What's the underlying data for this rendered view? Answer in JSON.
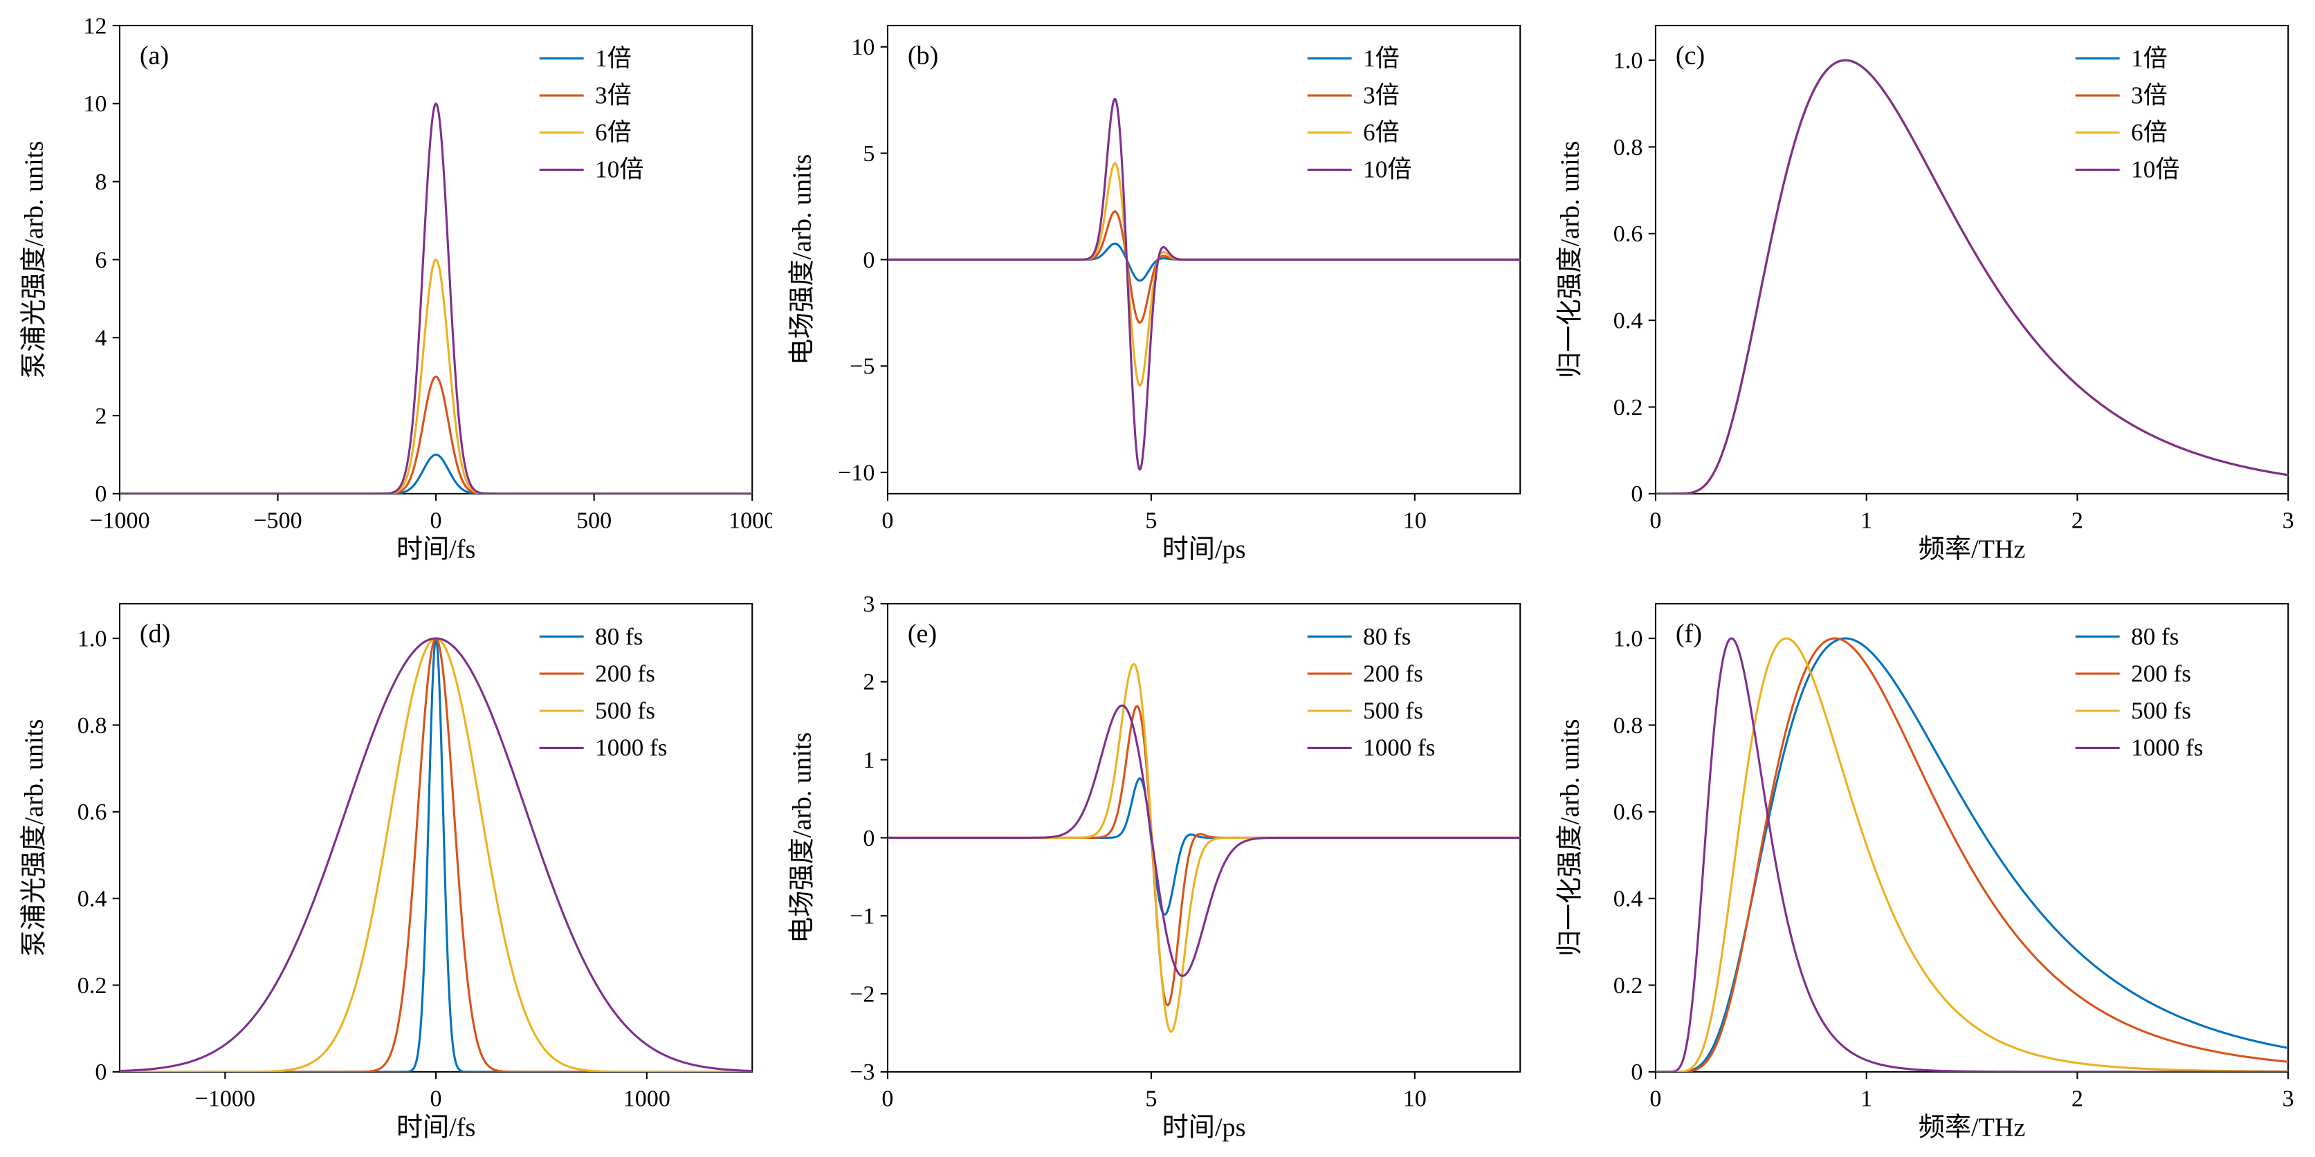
{
  "figure": {
    "background": "#ffffff",
    "panels_order": [
      "a",
      "b",
      "c",
      "d",
      "e",
      "f"
    ]
  },
  "palette": {
    "blue": "#0072BD",
    "red_orange": "#D95319",
    "yellow": "#EDB120",
    "purple": "#7E2F8E"
  },
  "chart_data": [
    {
      "id": "a",
      "type": "line",
      "panel_label": "(a)",
      "xlabel": "时间/fs",
      "ylabel": "泵浦光强度/arb. units",
      "xlim": [
        -1000,
        1000
      ],
      "ylim": [
        0,
        12
      ],
      "xticks": [
        -1000,
        -500,
        0,
        500,
        1000
      ],
      "xtick_labels": [
        "−1000",
        "−500",
        "0",
        "500",
        "1000"
      ],
      "yticks": [
        0,
        2,
        4,
        6,
        8,
        10,
        12
      ],
      "ytick_labels": [
        "0",
        "2",
        "4",
        "6",
        "8",
        "10",
        "12"
      ],
      "grid": false,
      "legend_position": "top-right",
      "series": [
        {
          "name": "1倍",
          "color": "#0072BD",
          "model": "gaussian_sum",
          "components": [
            {
              "amp": 1,
              "center": 0,
              "sigma": 40
            }
          ]
        },
        {
          "name": "3倍",
          "color": "#D95319",
          "model": "gaussian_sum",
          "components": [
            {
              "amp": 3,
              "center": 0,
              "sigma": 40
            }
          ]
        },
        {
          "name": "6倍",
          "color": "#EDB120",
          "model": "gaussian_sum",
          "components": [
            {
              "amp": 6,
              "center": 0,
              "sigma": 40
            }
          ]
        },
        {
          "name": "10倍",
          "color": "#7E2F8E",
          "model": "gaussian_sum",
          "components": [
            {
              "amp": 10,
              "center": 0,
              "sigma": 40
            }
          ]
        }
      ]
    },
    {
      "id": "b",
      "type": "line",
      "panel_label": "(b)",
      "xlabel": "时间/ps",
      "ylabel": "电场强度/arb. units",
      "xlim": [
        0,
        12
      ],
      "ylim": [
        -11,
        11
      ],
      "xticks": [
        0,
        5,
        10
      ],
      "xtick_labels": [
        "0",
        "5",
        "10"
      ],
      "yticks": [
        -10,
        -5,
        0,
        5,
        10
      ],
      "ytick_labels": [
        "−10",
        "−5",
        "0",
        "5",
        "10"
      ],
      "grid": false,
      "legend_position": "top-right",
      "series": [
        {
          "name": "1倍",
          "color": "#0072BD",
          "model": "gaussian_sum",
          "components": [
            {
              "amp": 0.77,
              "center": 4.32,
              "sigma": 0.16
            },
            {
              "amp": -1.0,
              "center": 4.78,
              "sigma": 0.16
            },
            {
              "amp": 0.09,
              "center": 5.16,
              "sigma": 0.13
            }
          ]
        },
        {
          "name": "3倍",
          "color": "#D95319",
          "model": "gaussian_sum",
          "components": [
            {
              "amp": 2.31,
              "center": 4.32,
              "sigma": 0.16
            },
            {
              "amp": -3.0,
              "center": 4.78,
              "sigma": 0.16
            },
            {
              "amp": 0.27,
              "center": 5.16,
              "sigma": 0.13
            }
          ]
        },
        {
          "name": "6倍",
          "color": "#EDB120",
          "model": "gaussian_sum",
          "components": [
            {
              "amp": 4.62,
              "center": 4.32,
              "sigma": 0.16
            },
            {
              "amp": -6.0,
              "center": 4.78,
              "sigma": 0.16
            },
            {
              "amp": 0.54,
              "center": 5.16,
              "sigma": 0.13
            }
          ]
        },
        {
          "name": "10倍",
          "color": "#7E2F8E",
          "model": "gaussian_sum",
          "components": [
            {
              "amp": 7.7,
              "center": 4.32,
              "sigma": 0.16
            },
            {
              "amp": -10.0,
              "center": 4.78,
              "sigma": 0.16
            },
            {
              "amp": 0.9,
              "center": 5.16,
              "sigma": 0.13
            }
          ]
        }
      ]
    },
    {
      "id": "c",
      "type": "line",
      "panel_label": "(c)",
      "xlabel": "频率/THz",
      "ylabel": "归一化强度/arb. units",
      "xlim": [
        0,
        3
      ],
      "ylim": [
        0,
        1.08
      ],
      "xticks": [
        0,
        1,
        2,
        3
      ],
      "xtick_labels": [
        "0",
        "1",
        "2",
        "3"
      ],
      "yticks": [
        0,
        0.2,
        0.4,
        0.6,
        0.8,
        1.0
      ],
      "ytick_labels": [
        "0",
        "0.2",
        "0.4",
        "0.6",
        "0.8",
        "1.0"
      ],
      "grid": false,
      "legend_position": "top-right",
      "note": "all four normalized spectra overlap; peak at ~0.9 THz, value 1.0",
      "series": [
        {
          "name": "1倍",
          "color": "#0072BD",
          "model": "lognormal",
          "params": {
            "peak_freq": 0.9,
            "width": 0.48
          }
        },
        {
          "name": "3倍",
          "color": "#D95319",
          "model": "lognormal",
          "params": {
            "peak_freq": 0.9,
            "width": 0.48
          }
        },
        {
          "name": "6倍",
          "color": "#EDB120",
          "model": "lognormal",
          "params": {
            "peak_freq": 0.9,
            "width": 0.48
          }
        },
        {
          "name": "10倍",
          "color": "#7E2F8E",
          "model": "lognormal",
          "params": {
            "peak_freq": 0.9,
            "width": 0.48
          }
        }
      ]
    },
    {
      "id": "d",
      "type": "line",
      "panel_label": "(d)",
      "xlabel": "时间/fs",
      "ylabel": "泵浦光强度/arb. units",
      "xlim": [
        -1500,
        1500
      ],
      "ylim": [
        0,
        1.08
      ],
      "xticks": [
        -1000,
        0,
        1000
      ],
      "xtick_labels": [
        "−1000",
        "0",
        "1000"
      ],
      "yticks": [
        0,
        0.2,
        0.4,
        0.6,
        0.8,
        1.0
      ],
      "ytick_labels": [
        "0",
        "0.2",
        "0.4",
        "0.6",
        "0.8",
        "1.0"
      ],
      "grid": false,
      "legend_position": "top-right",
      "series": [
        {
          "name": "80 fs",
          "color": "#0072BD",
          "model": "gaussian_sum",
          "components": [
            {
              "amp": 1.0,
              "center": 0,
              "sigma": 34
            }
          ]
        },
        {
          "name": "200 fs",
          "color": "#D95319",
          "model": "gaussian_sum",
          "components": [
            {
              "amp": 1.0,
              "center": 0,
              "sigma": 85
            }
          ]
        },
        {
          "name": "500 fs",
          "color": "#EDB120",
          "model": "gaussian_sum",
          "components": [
            {
              "amp": 1.0,
              "center": 0,
              "sigma": 212
            }
          ]
        },
        {
          "name": "1000 fs",
          "color": "#7E2F8E",
          "model": "gaussian_sum",
          "components": [
            {
              "amp": 1.0,
              "center": 0,
              "sigma": 425
            }
          ]
        }
      ]
    },
    {
      "id": "e",
      "type": "line",
      "panel_label": "(e)",
      "xlabel": "时间/ps",
      "ylabel": "电场强度/arb. units",
      "xlim": [
        0,
        12
      ],
      "ylim": [
        -3,
        3
      ],
      "xticks": [
        0,
        5,
        10
      ],
      "xtick_labels": [
        "0",
        "5",
        "10"
      ],
      "yticks": [
        -3,
        -2,
        -1,
        0,
        1,
        2,
        3
      ],
      "ytick_labels": [
        "−3",
        "−2",
        "−1",
        "0",
        "1",
        "2",
        "3"
      ],
      "grid": false,
      "legend_position": "top-right",
      "series": [
        {
          "name": "80 fs",
          "color": "#0072BD",
          "model": "gaussian_sum",
          "components": [
            {
              "amp": 0.8,
              "center": 4.8,
              "sigma": 0.16
            },
            {
              "amp": -1.0,
              "center": 5.25,
              "sigma": 0.18
            },
            {
              "amp": 0.08,
              "center": 5.65,
              "sigma": 0.14
            }
          ]
        },
        {
          "name": "200 fs",
          "color": "#D95319",
          "model": "gaussian_sum",
          "components": [
            {
              "amp": 1.75,
              "center": 4.75,
              "sigma": 0.21
            },
            {
              "amp": -2.2,
              "center": 5.3,
              "sigma": 0.21
            },
            {
              "amp": 0.1,
              "center": 5.8,
              "sigma": 0.16
            }
          ]
        },
        {
          "name": "500 fs",
          "color": "#EDB120",
          "model": "gaussian_sum",
          "components": [
            {
              "amp": 2.35,
              "center": 4.7,
              "sigma": 0.27
            },
            {
              "amp": -2.6,
              "center": 5.35,
              "sigma": 0.27
            }
          ]
        },
        {
          "name": "1000 fs",
          "color": "#7E2F8E",
          "model": "gaussian_sum",
          "components": [
            {
              "amp": 1.8,
              "center": 4.5,
              "sigma": 0.43
            },
            {
              "amp": -1.85,
              "center": 5.55,
              "sigma": 0.45
            }
          ]
        }
      ]
    },
    {
      "id": "f",
      "type": "line",
      "panel_label": "(f)",
      "xlabel": "频率/THz",
      "ylabel": "归一化强度/arb. units",
      "xlim": [
        0,
        3
      ],
      "ylim": [
        0,
        1.08
      ],
      "xticks": [
        0,
        1,
        2,
        3
      ],
      "xtick_labels": [
        "0",
        "1",
        "2",
        "3"
      ],
      "yticks": [
        0,
        0.2,
        0.4,
        0.6,
        0.8,
        1.0
      ],
      "ytick_labels": [
        "0",
        "0.2",
        "0.4",
        "0.6",
        "0.8",
        "1.0"
      ],
      "grid": false,
      "legend_position": "top-right",
      "note": "normalized spectra peak near 0.9, 0.85, 0.62, 0.36 THz for 80/200/500/1000 fs",
      "series": [
        {
          "name": "80 fs",
          "color": "#0072BD",
          "model": "lognormal",
          "params": {
            "peak_freq": 0.9,
            "width": 0.5
          }
        },
        {
          "name": "200 fs",
          "color": "#D95319",
          "model": "lognormal",
          "params": {
            "peak_freq": 0.85,
            "width": 0.46
          }
        },
        {
          "name": "500 fs",
          "color": "#EDB120",
          "model": "lognormal",
          "params": {
            "peak_freq": 0.62,
            "width": 0.42
          }
        },
        {
          "name": "1000 fs",
          "color": "#7E2F8E",
          "model": "lognormal",
          "params": {
            "peak_freq": 0.36,
            "width": 0.38
          }
        }
      ]
    }
  ]
}
